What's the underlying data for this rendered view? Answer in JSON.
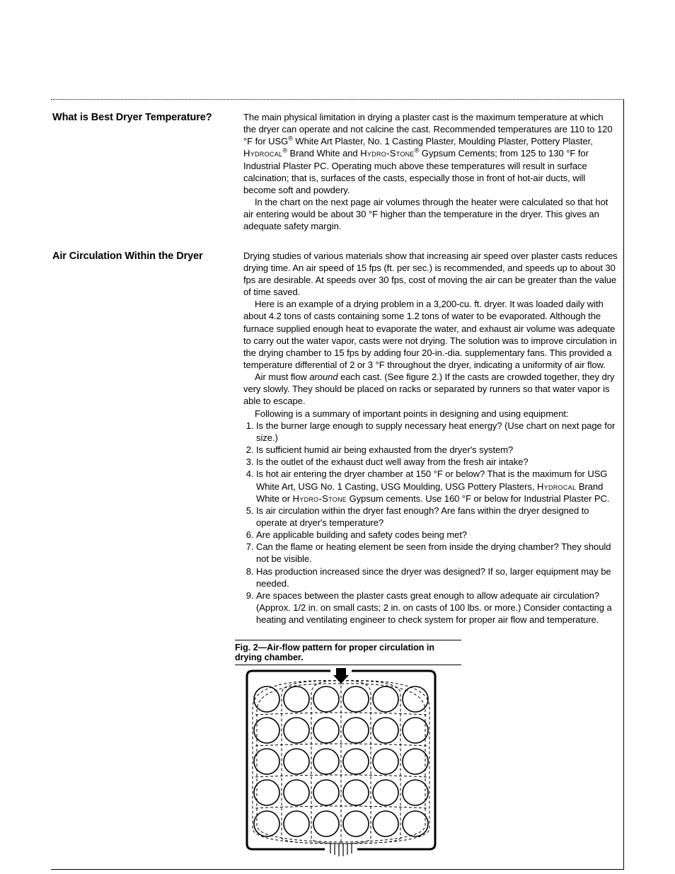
{
  "sections": [
    {
      "heading": "What is Best Dryer Temperature?",
      "paras": [
        "The main physical limitation in drying a plaster cast is the maximum temperature at which the dryer can operate and not calcine the cast. Recommended temperatures are 110 to 120 °F for USG® White Art Plaster, No. 1 Casting Plaster, Moulding Plaster, Pottery Plaster, HYDROCAL® Brand White and HYDRO-STONE® Gypsum Cements; from 125 to 130 °F for Industrial Plaster PC. Operating much above these temperatures will result in surface calcination; that is, surfaces of the casts, especially those in front of hot-air ducts, will become soft and powdery.",
        "In the chart on the next page air volumes through the heater were calculated so that hot air entering would be about 30 °F higher than the temperature in the dryer. This gives an adequate safety margin."
      ]
    },
    {
      "heading": "Air Circulation Within the Dryer",
      "paras": [
        "Drying studies of various materials show that increasing air speed over plaster casts reduces drying time. An air speed of 15 fps (ft. per sec.) is recommended, and speeds up to about 30 fps are desirable. At speeds over 30 fps, cost of moving the air can be greater than the value of time saved.",
        "Here is an example of a drying problem in a 3,200-cu. ft. dryer. It was loaded daily with about 4.2 tons of casts containing some 1.2 tons of water to be evaporated. Although the furnace supplied enough heat to evaporate the water, and exhaust air volume was adequate to carry out the water vapor, casts were not drying. The solution was to improve circulation in the drying chamber to 15 fps by adding four 20-in.-dia. supplementary fans. This provided a temperature differential of 2 or 3 °F throughout the dryer, indicating a uniformity of air flow.",
        "Air must flow around each cast. (See figure 2.) If the casts are crowded together, they dry very slowly. They should be placed on racks or separated by runners so that water vapor is able to escape.",
        "Following is a summary of important points in designing and using equipment:"
      ],
      "points": [
        "Is the burner large enough to supply necessary heat energy? (Use chart on next page for size.)",
        "Is sufficient humid air being exhausted from the dryer's system?",
        "Is the outlet of the exhaust duct well away from the fresh air intake?",
        "Is hot air entering the dryer chamber at 150 °F or below? That is the maximum for USG White Art, USG No. 1 Casting, USG Moulding, USG Pottery Plasters, HYDROCAL Brand White or HYDRO-STONE Gypsum cements. Use 160 °F or below for Industrial Plaster PC.",
        "Is air circulation within the dryer fast enough? Are fans within the dryer designed to operate at dryer's temperature?",
        "Are applicable building and safety codes being met?",
        "Can the flame or heating element be seen from inside the drying chamber? They should not be visible.",
        "Has production increased since the dryer was designed? If so, larger equipment may be needed.",
        "Are spaces between the plaster casts great enough to allow adequate air circulation? (Approx. 1/2 in. on small casts; 2 in. on casts of 100 lbs. or more.) Consider contacting a heating and ventilating engineer to check system for proper air flow and temperature."
      ]
    }
  ],
  "figure": {
    "caption": "Fig. 2—Air-flow pattern for proper circulation in drying chamber.",
    "circle_stroke": "#000000",
    "flow_stroke": "#000000",
    "chamber_stroke": "#000000",
    "circle_r": 18,
    "cols": [
      40,
      82,
      124,
      166,
      208,
      250
    ],
    "rows": [
      48,
      92,
      136,
      180,
      224
    ]
  },
  "style": {
    "page_bg": "#ffffff",
    "text_color": "#000000",
    "heading_fontsize": 14.5,
    "body_fontsize": 13
  }
}
